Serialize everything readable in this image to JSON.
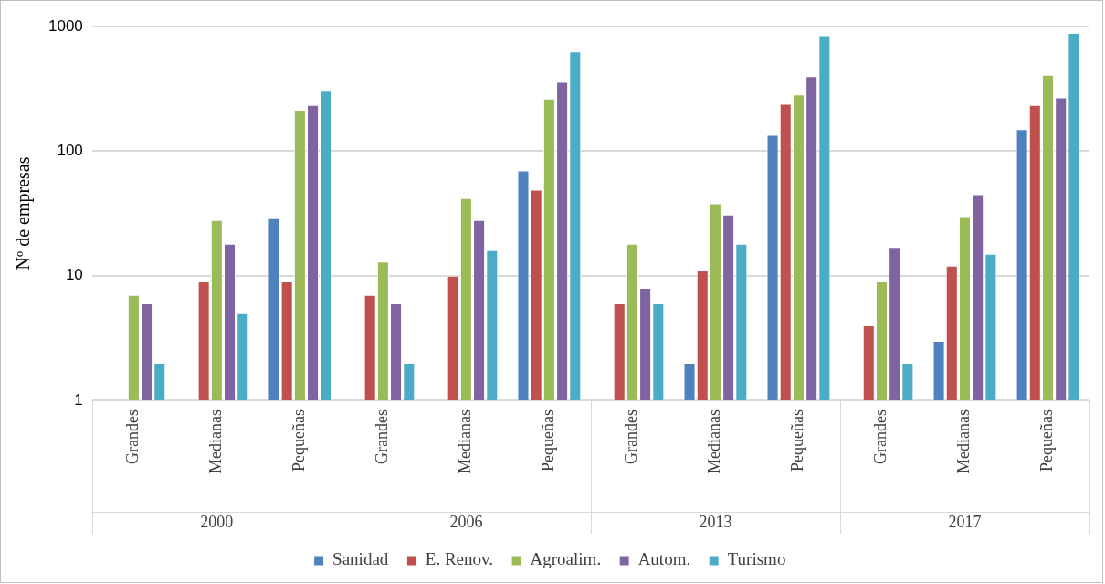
{
  "chart_data": {
    "type": "bar",
    "ylabel": "Nº de empresas",
    "categories": [
      "Grandes",
      "Medianas",
      "Pequeñas",
      "Grandes",
      "Medianas",
      "Pequeñas",
      "Grandes",
      "Medianas",
      "Pequeñas",
      "Grandes",
      "Medianas",
      "Pequeñas"
    ],
    "annotations": [
      "2000",
      "2006",
      "2013",
      "2017"
    ],
    "series": [
      {
        "name": "Sanidad",
        "color": "#4f81bd",
        "values": [
          null,
          null,
          29,
          null,
          null,
          70,
          null,
          2,
          135,
          null,
          3,
          150
        ]
      },
      {
        "name": "E. Renov.",
        "color": "#c0504d",
        "values": [
          null,
          9,
          9,
          7,
          10,
          49,
          6,
          11,
          240,
          4,
          12,
          235
        ]
      },
      {
        "name": "Agroalim.",
        "color": "#9bbb59",
        "values": [
          7,
          28,
          215,
          13,
          42,
          265,
          18,
          38,
          285,
          9,
          30,
          410
        ]
      },
      {
        "name": "Autom.",
        "color": "#8064a2",
        "values": [
          6,
          18,
          235,
          6,
          28,
          360,
          8,
          31,
          400,
          17,
          45,
          270
        ]
      },
      {
        "name": "Turismo",
        "color": "#4bacc6",
        "values": [
          2,
          5,
          305,
          2,
          16,
          630,
          6,
          18,
          850,
          2,
          15,
          890
        ]
      }
    ],
    "log": true,
    "ylim": [
      1,
      1000
    ],
    "yticks": [
      1,
      10,
      100,
      1000
    ],
    "grid": "y",
    "legend": "bottom"
  }
}
